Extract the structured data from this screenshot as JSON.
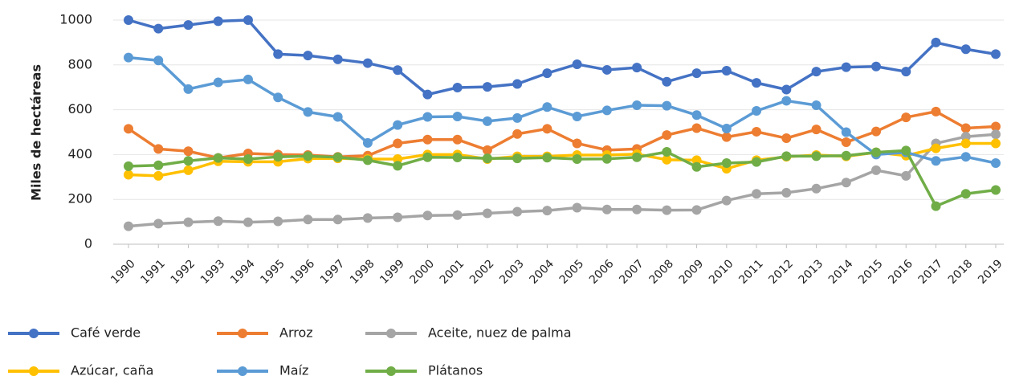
{
  "chart_data": {
    "type": "line",
    "y_label": "Miles de hectáreas",
    "categories": [
      "1990",
      "1991",
      "1992",
      "1993",
      "1994",
      "1995",
      "1996",
      "1997",
      "1998",
      "1999",
      "2000",
      "2001",
      "2002",
      "2003",
      "2004",
      "2005",
      "2006",
      "2007",
      "2008",
      "2009",
      "2010",
      "2011",
      "2012",
      "2013",
      "2014",
      "2015",
      "2016",
      "2017",
      "2018",
      "2019"
    ],
    "ylim": [
      0,
      1000
    ],
    "yticks": [
      0,
      200,
      400,
      600,
      800,
      1000
    ],
    "grid": true,
    "legend": "bottom",
    "series": [
      {
        "name": "Café verde",
        "color": "#4472c4",
        "values": [
          1000,
          962,
          978,
          995,
          1000,
          848,
          842,
          825,
          808,
          777,
          668,
          699,
          702,
          715,
          763,
          803,
          778,
          788,
          725,
          763,
          774,
          720,
          690,
          770,
          790,
          793,
          770,
          900,
          870,
          848
        ]
      },
      {
        "name": "Arroz",
        "color": "#ed7d31",
        "values": [
          515,
          425,
          415,
          385,
          405,
          400,
          398,
          390,
          395,
          450,
          467,
          467,
          420,
          492,
          515,
          450,
          420,
          425,
          487,
          518,
          478,
          502,
          473,
          512,
          455,
          503,
          566,
          592,
          518,
          525
        ]
      },
      {
        "name": "Aceite, nuez de palma",
        "color": "#a5a5a5",
        "values": [
          80,
          92,
          98,
          103,
          98,
          102,
          110,
          110,
          117,
          120,
          128,
          130,
          138,
          145,
          150,
          163,
          155,
          155,
          152,
          153,
          195,
          225,
          230,
          248,
          275,
          330,
          305,
          450,
          480,
          490
        ]
      },
      {
        "name": "Azúcar, caña",
        "color": "#ffc000",
        "values": [
          310,
          305,
          330,
          370,
          368,
          368,
          382,
          383,
          380,
          380,
          400,
          400,
          380,
          392,
          392,
          398,
          398,
          402,
          377,
          375,
          337,
          375,
          390,
          398,
          392,
          410,
          395,
          428,
          450,
          450
        ]
      },
      {
        "name": "Maíz",
        "color": "#5b9bd5",
        "values": [
          833,
          820,
          692,
          722,
          735,
          655,
          590,
          568,
          452,
          532,
          568,
          570,
          549,
          563,
          612,
          570,
          597,
          620,
          618,
          576,
          516,
          595,
          640,
          620,
          500,
          400,
          410,
          372,
          390,
          362
        ]
      },
      {
        "name": "Plátanos",
        "color": "#70ad47",
        "values": [
          348,
          352,
          372,
          385,
          380,
          390,
          393,
          388,
          375,
          350,
          388,
          387,
          383,
          383,
          386,
          380,
          381,
          388,
          412,
          345,
          362,
          367,
          393,
          393,
          395,
          410,
          418,
          170,
          225,
          242
        ]
      }
    ]
  }
}
